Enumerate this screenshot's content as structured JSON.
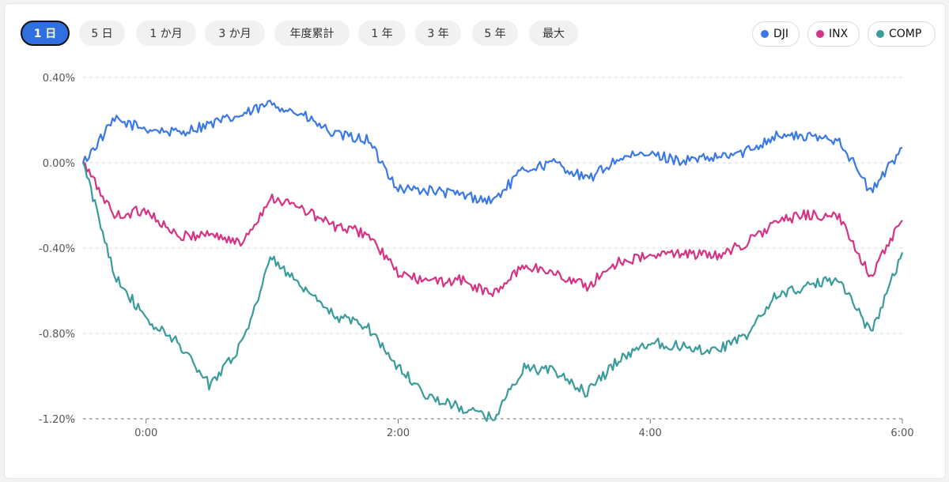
{
  "range_buttons": [
    {
      "label": "1 日",
      "active": true
    },
    {
      "label": "5 日",
      "active": false
    },
    {
      "label": "1 か月",
      "active": false
    },
    {
      "label": "3 か月",
      "active": false
    },
    {
      "label": "年度累計",
      "active": false
    },
    {
      "label": "1 年",
      "active": false
    },
    {
      "label": "3 年",
      "active": false
    },
    {
      "label": "5 年",
      "active": false
    },
    {
      "label": "最大",
      "active": false
    }
  ],
  "legend": [
    {
      "label": "DJI",
      "color": "#3b78e7"
    },
    {
      "label": "INX",
      "color": "#d63384"
    },
    {
      "label": "COMP",
      "color": "#3a9b9b"
    }
  ],
  "chart_data": {
    "type": "line",
    "ylim": [
      -1.2,
      0.4
    ],
    "xlim": [
      "-0:30",
      "6:00"
    ],
    "y_ticks": [
      "0.40%",
      "0.00%",
      "-0.40%",
      "-0.80%",
      "-1.20%"
    ],
    "x_ticks": [
      "0:00",
      "2:00",
      "4:00",
      "6:00"
    ],
    "grid": true,
    "x": [
      "-0:30",
      "-0:15",
      "0:00",
      "0:15",
      "0:30",
      "0:45",
      "1:00",
      "1:15",
      "1:30",
      "1:45",
      "2:00",
      "2:15",
      "2:30",
      "2:45",
      "3:00",
      "3:15",
      "3:30",
      "3:45",
      "4:00",
      "4:15",
      "4:30",
      "4:45",
      "5:00",
      "5:15",
      "5:30",
      "5:45",
      "6:00"
    ],
    "series": [
      {
        "name": "DJI",
        "color": "#3b78e7",
        "values": [
          0.0,
          0.2,
          0.16,
          0.14,
          0.18,
          0.22,
          0.28,
          0.22,
          0.13,
          0.11,
          -0.12,
          -0.13,
          -0.15,
          -0.18,
          -0.03,
          0.0,
          -0.08,
          0.02,
          0.04,
          0.01,
          0.02,
          0.05,
          0.13,
          0.12,
          0.11,
          -0.14,
          0.07
        ]
      },
      {
        "name": "INX",
        "color": "#d63384",
        "values": [
          0.0,
          -0.25,
          -0.22,
          -0.35,
          -0.33,
          -0.38,
          -0.16,
          -0.22,
          -0.3,
          -0.33,
          -0.52,
          -0.56,
          -0.55,
          -0.62,
          -0.48,
          -0.52,
          -0.58,
          -0.46,
          -0.44,
          -0.42,
          -0.44,
          -0.38,
          -0.28,
          -0.24,
          -0.26,
          -0.53,
          -0.27
        ]
      },
      {
        "name": "COMP",
        "color": "#3a9b9b",
        "values": [
          0.0,
          -0.52,
          -0.74,
          -0.84,
          -1.04,
          -0.86,
          -0.44,
          -0.6,
          -0.72,
          -0.76,
          -0.96,
          -1.1,
          -1.15,
          -1.2,
          -0.96,
          -0.98,
          -1.08,
          -0.92,
          -0.84,
          -0.86,
          -0.88,
          -0.82,
          -0.62,
          -0.58,
          -0.54,
          -0.8,
          -0.42
        ]
      }
    ]
  }
}
